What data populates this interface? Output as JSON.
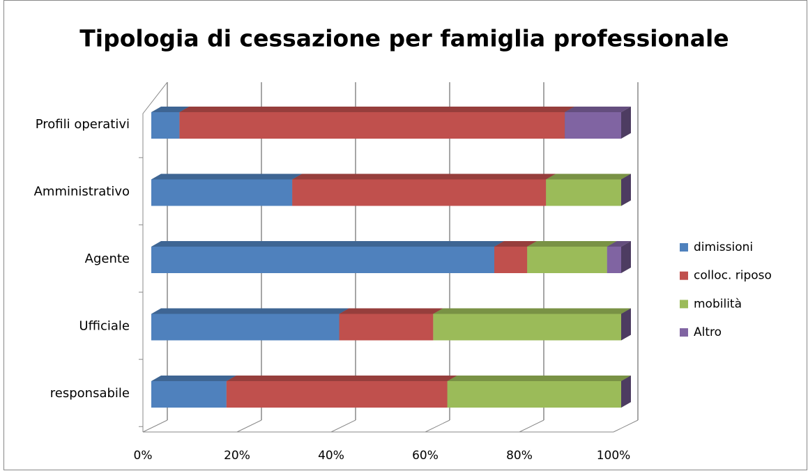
{
  "chart_data": {
    "type": "stacked-bar-3d",
    "title": "Tipologia di cessazione per famiglia professionale",
    "orientation": "horizontal",
    "categories": [
      "responsabile",
      "Ufficiale",
      "Agente",
      "Amministrativo",
      "Profili operativi"
    ],
    "series": [
      {
        "name": "dimissioni",
        "color": "#4f81bd",
        "values": [
          16,
          40,
          73,
          30,
          6
        ]
      },
      {
        "name": "colloc. riposo",
        "color": "#c0504d",
        "values": [
          47,
          20,
          7,
          54,
          82
        ]
      },
      {
        "name": "mobilità",
        "color": "#9bbb59",
        "values": [
          37,
          40,
          17,
          16,
          0
        ]
      },
      {
        "name": "Altro",
        "color": "#8064a2",
        "values": [
          0,
          0,
          3,
          0,
          12
        ]
      }
    ],
    "xlim": [
      0,
      100
    ],
    "xticks": [
      {
        "value": 0,
        "label": "0%"
      },
      {
        "value": 20,
        "label": "20%"
      },
      {
        "value": 40,
        "label": "40%"
      },
      {
        "value": 60,
        "label": "60%"
      },
      {
        "value": 80,
        "label": "80%"
      },
      {
        "value": 100,
        "label": "100%"
      }
    ],
    "grid": true,
    "legend": "right"
  }
}
